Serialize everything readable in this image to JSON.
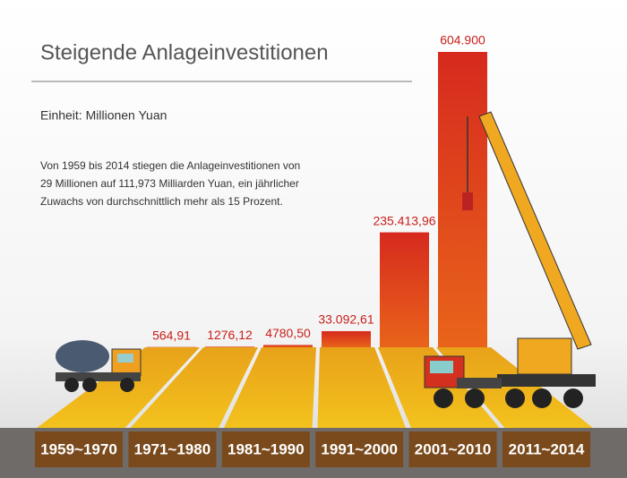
{
  "chart_data": {
    "type": "bar",
    "title": "Steigende Anlageinvestitionen",
    "subtitle": "Einheit: Millionen Yuan",
    "description": [
      "Von 1959 bis 2014 stiegen die Anlageinvestitionen von",
      "29 Millionen auf 111,973 Milliarden Yuan, ein jährlicher",
      "Zuwachs von durchschnittlich mehr als 15 Prozent."
    ],
    "categories": [
      "1959~1970",
      "1971~1980",
      "1981~1990",
      "1991~2000",
      "2001~2010",
      "2011~2014"
    ],
    "values": [
      564.91,
      1276.12,
      4780.5,
      33092.61,
      235413.96,
      604900
    ],
    "value_labels": [
      "564,91",
      "1276,12",
      "4780,50",
      "33.092,61",
      "235.413,96",
      "604.900"
    ],
    "color": "#d9301f"
  }
}
